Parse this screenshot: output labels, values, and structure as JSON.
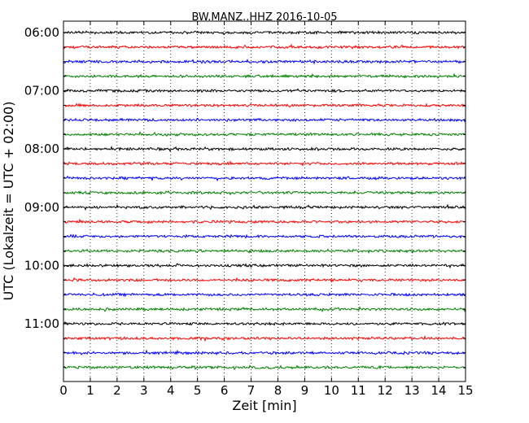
{
  "chart_data": {
    "type": "line",
    "title": "BW.MANZ..HHZ 2016-10-05",
    "xlabel": "Zeit  [min]",
    "ylabel": "UTC (Lokalzeit = UTC + 02:00)",
    "xlim": [
      0,
      15
    ],
    "x_ticks": [
      "0",
      "1",
      "2",
      "3",
      "4",
      "5",
      "6",
      "7",
      "8",
      "9",
      "10",
      "11",
      "12",
      "13",
      "14",
      "15"
    ],
    "y_tick_labels": [
      "06:00",
      "07:00",
      "08:00",
      "09:00",
      "10:00",
      "11:00"
    ],
    "traces_per_hour": 4,
    "trace_start_times": [
      "06:00",
      "06:15",
      "06:30",
      "06:45",
      "07:00",
      "07:15",
      "07:30",
      "07:45",
      "08:00",
      "08:15",
      "08:30",
      "08:45",
      "09:00",
      "09:15",
      "09:30",
      "09:45",
      "10:00",
      "10:15",
      "10:30",
      "10:45",
      "11:00",
      "11:15",
      "11:30",
      "11:45"
    ],
    "trace_colors": [
      "#000000",
      "#ff0000",
      "#0000ff",
      "#008000"
    ],
    "grid": "vertical-dotted",
    "legend": "none"
  }
}
